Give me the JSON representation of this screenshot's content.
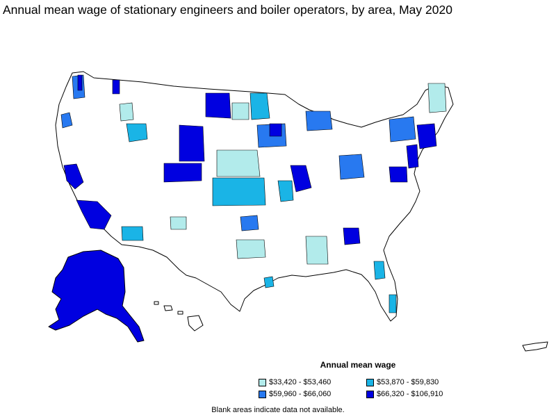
{
  "title": "Annual mean wage of stationary engineers and boiler operators, by area, May 2020",
  "legend": {
    "title": "Annual mean wage",
    "items": [
      {
        "label": "$33,420 - $53,460",
        "color": "#b2ebeb"
      },
      {
        "label": "$53,870 - $59,830",
        "color": "#1ab4e6"
      },
      {
        "label": "$59,960 - $66,060",
        "color": "#2879f0"
      },
      {
        "label": "$66,320 - $106,910",
        "color": "#0000e0"
      }
    ]
  },
  "footnote": "Blank areas indicate data not available."
}
